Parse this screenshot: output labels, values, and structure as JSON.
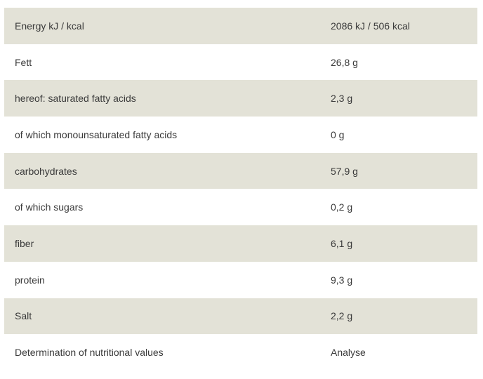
{
  "table": {
    "rows": [
      [
        "Energy kJ / kcal",
        "2086 kJ / 506 kcal"
      ],
      [
        "Fett",
        "26,8 g"
      ],
      [
        "hereof: saturated fatty acids",
        "2,3 g"
      ],
      [
        "of which monounsaturated fatty acids",
        "0 g"
      ],
      [
        "carbohydrates",
        "57,9 g"
      ],
      [
        "of which sugars",
        "0,2 g"
      ],
      [
        "fiber",
        "6,1 g"
      ],
      [
        "protein",
        "9,3 g"
      ],
      [
        "Salt",
        "2,2 g"
      ],
      [
        "Determination of nutritional values",
        "Analyse"
      ]
    ]
  }
}
